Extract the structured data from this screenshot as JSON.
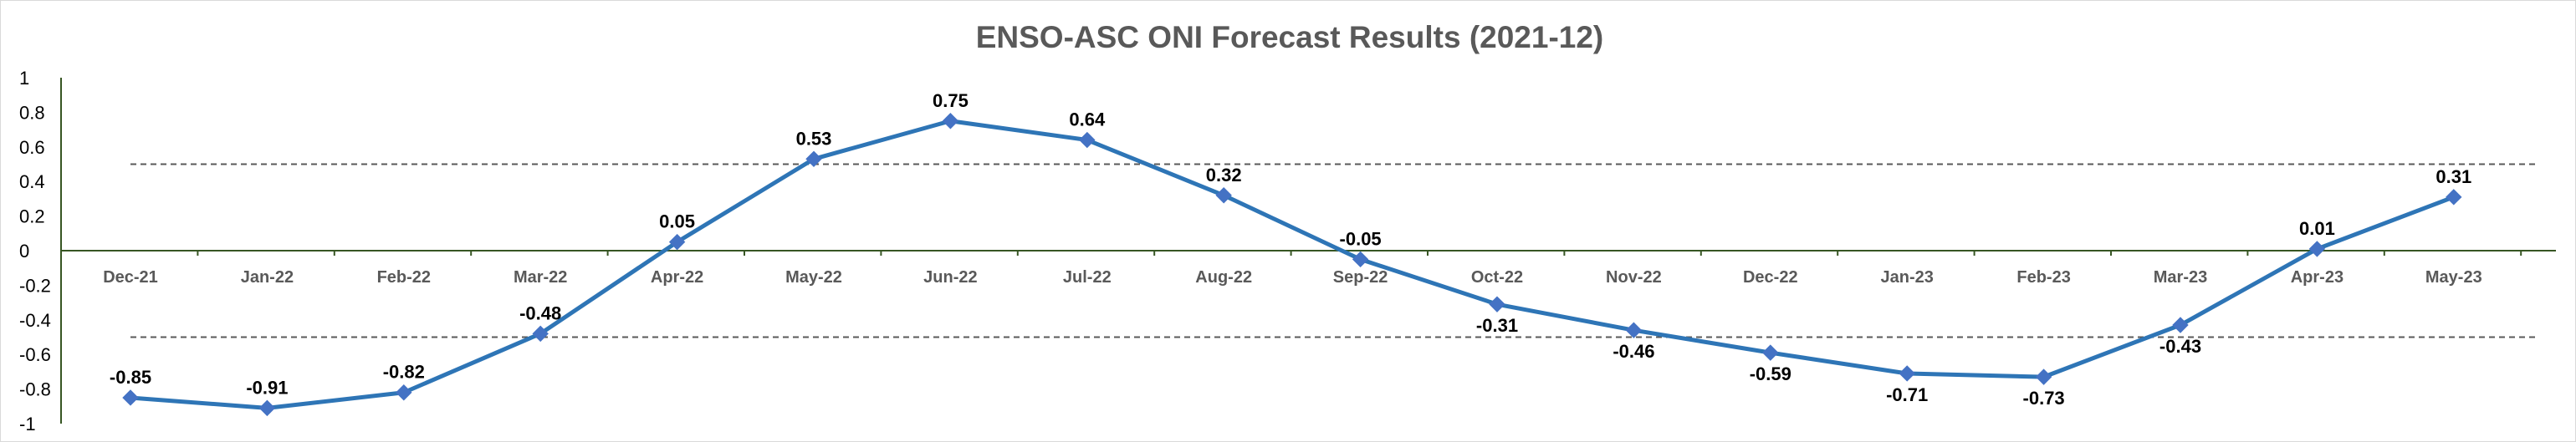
{
  "chart_data": {
    "type": "line",
    "title": "ENSO-ASC ONI Forecast Results (2021-12)",
    "categories": [
      "Dec-21",
      "Jan-22",
      "Feb-22",
      "Mar-22",
      "Apr-22",
      "May-22",
      "Jun-22",
      "Jul-22",
      "Aug-22",
      "Sep-22",
      "Oct-22",
      "Nov-22",
      "Dec-22",
      "Jan-23",
      "Feb-23",
      "Mar-23",
      "Apr-23",
      "May-23"
    ],
    "series": [
      {
        "values": [
          -0.85,
          -0.91,
          -0.82,
          -0.48,
          0.05,
          0.53,
          0.75,
          0.64,
          0.32,
          -0.05,
          -0.31,
          -0.46,
          -0.59,
          -0.71,
          -0.73,
          -0.43,
          0.01,
          0.31
        ],
        "labels": [
          "-0.85",
          "-0.91",
          "-0.82",
          "-0.48",
          "0.05",
          "0.53",
          "0.75",
          "0.64",
          "0.32",
          "-0.05",
          "-0.31",
          "-0.46",
          "-0.59",
          "-0.71",
          "-0.73",
          "-0.43",
          "0.01",
          "0.31"
        ],
        "label_position": [
          "above",
          "above",
          "above",
          "above",
          "above",
          "above",
          "above",
          "above",
          "above",
          "above",
          "below",
          "below",
          "below",
          "below",
          "below",
          "below",
          "above",
          "above"
        ],
        "color": "#2e75b6",
        "marker": "diamond"
      }
    ],
    "ylim": [
      -1,
      1
    ],
    "yticks": [
      {
        "value": 1,
        "label": "1"
      },
      {
        "value": 0.8,
        "label": "0.8"
      },
      {
        "value": 0.6,
        "label": "0.6"
      },
      {
        "value": 0.4,
        "label": "0.4"
      },
      {
        "value": 0.2,
        "label": "0.2"
      },
      {
        "value": 0,
        "label": "0"
      },
      {
        "value": -0.2,
        "label": "-0.2"
      },
      {
        "value": -0.4,
        "label": "-0.4"
      },
      {
        "value": -0.6,
        "label": "-0.6"
      },
      {
        "value": -0.8,
        "label": "-0.8"
      },
      {
        "value": -1,
        "label": "-1"
      }
    ],
    "reference_lines": [
      {
        "value": 0.5,
        "style": "dashed",
        "color": "#595959"
      },
      {
        "value": -0.5,
        "style": "dashed",
        "color": "#595959"
      }
    ],
    "axis_color": "#375623",
    "grid": false,
    "legend": "none"
  }
}
